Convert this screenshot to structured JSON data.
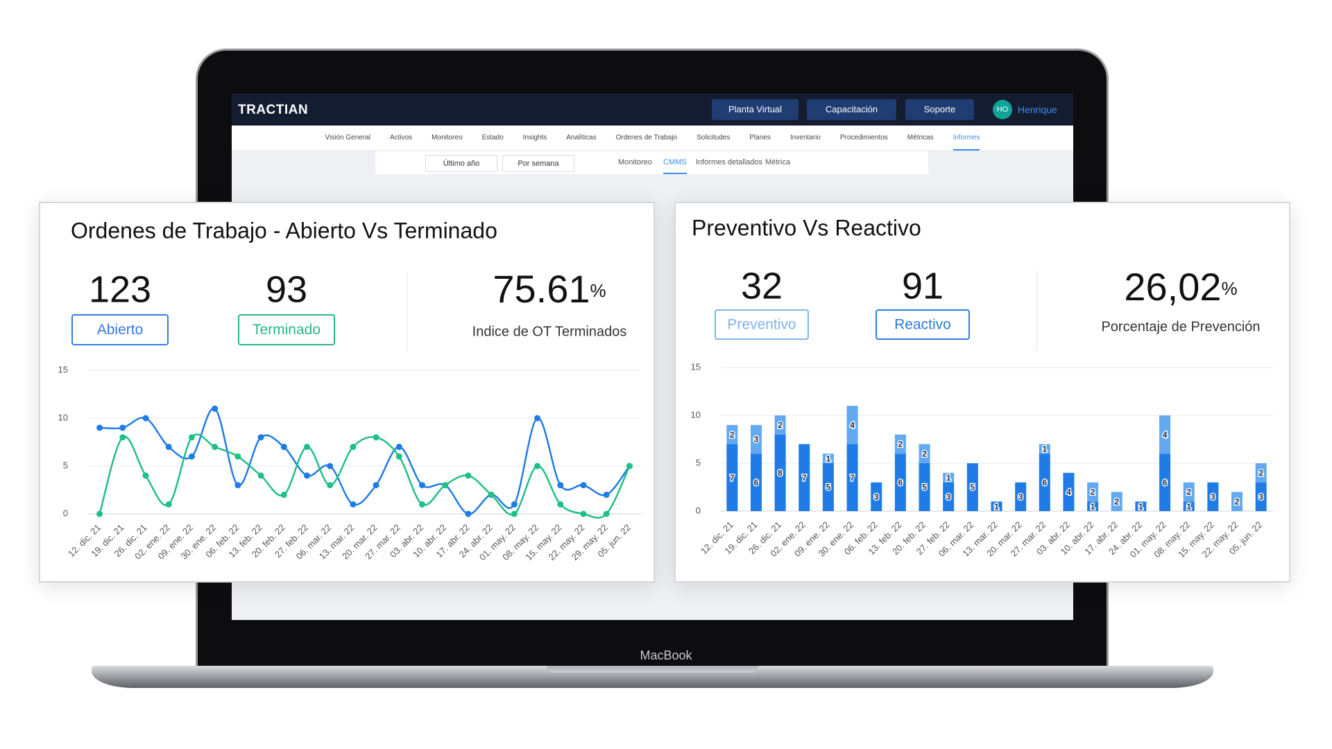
{
  "header": {
    "logo": "TRACTIAN",
    "buttons": [
      "Planta Virtual",
      "Capacitación",
      "Soporte"
    ],
    "avatar": "HO",
    "user": "Henrique"
  },
  "menu": {
    "items": [
      "Visión General",
      "Activos",
      "Monitoreo",
      "Estado",
      "Insights",
      "Analíticas",
      "Ordenes de Trabajo",
      "Solicitudes",
      "Planes",
      "Inventario",
      "Procedimientos",
      "Métricas",
      "Informes"
    ],
    "active": 12
  },
  "filters": [
    "Último año",
    "Por semana"
  ],
  "tabs": {
    "items": [
      "Monitoreo",
      "CMMS",
      "Informes detallados",
      "Métrica"
    ],
    "active": 1
  },
  "device_label": "MacBook",
  "chart_data": [
    {
      "type": "line",
      "title": "Ordenes de Trabajo - Abierto Vs Terminado",
      "kpi": {
        "value": 75.61,
        "unit": "%",
        "label": "Indice de OT Terminados"
      },
      "categories": [
        "12. dic. 21",
        "19. dic. 21",
        "26. dic. 21",
        "02. ene. 22",
        "09. ene. 22",
        "30. ene. 22",
        "06. feb. 22",
        "13. feb. 22",
        "20. feb. 22",
        "27. feb. 22",
        "06. mar. 22",
        "13. mar. 22",
        "20. mar. 22",
        "27. mar. 22",
        "03. abr. 22",
        "10. abr. 22",
        "17. abr. 22",
        "24. abr. 22",
        "01. may. 22",
        "08. may. 22",
        "15. may. 22",
        "22. may. 22",
        "29. may. 22",
        "05. jun. 22"
      ],
      "series": [
        {
          "name": "Abierto",
          "total": 123,
          "color": "#1f7be6",
          "values": [
            9,
            9,
            10,
            7,
            6,
            11,
            3,
            8,
            7,
            4,
            5,
            1,
            3,
            7,
            3,
            3,
            0,
            2,
            1,
            10,
            3,
            3,
            2,
            5
          ]
        },
        {
          "name": "Terminado",
          "total": 93,
          "color": "#20bf86",
          "values": [
            0,
            8,
            4,
            1,
            8,
            7,
            6,
            4,
            2,
            7,
            3,
            7,
            8,
            6,
            1,
            3,
            4,
            2,
            0,
            5,
            1,
            0,
            0,
            5
          ]
        }
      ],
      "ylim": [
        0,
        15
      ],
      "yticks": [
        0,
        5,
        10,
        15
      ],
      "grid": true
    },
    {
      "type": "bar",
      "stacked": true,
      "title": "Preventivo Vs Reactivo",
      "kpi": {
        "value": {
          "value": 26.02,
          "label": "26,02"
        },
        "unit": "%",
        "label": "Porcentaje de Prevención"
      },
      "categories": [
        "12. dic. 21",
        "19. dic. 21",
        "26. dic. 21",
        "02. ene. 22",
        "09. ene. 22",
        "30. ene. 22",
        "06. feb. 22",
        "13. feb. 22",
        "20. feb. 22",
        "27. feb. 22",
        "06. mar. 22",
        "13. mar. 22",
        "20. mar. 22",
        "27. mar. 22",
        "03. abr. 22",
        "10. abr. 22",
        "17. abr. 22",
        "24. abr. 22",
        "01. may. 22",
        "08. may. 22",
        "15. may. 22",
        "22. may. 22",
        "05. jun. 22"
      ],
      "series": [
        {
          "name": "Preventivo",
          "total": 32,
          "color": "#62a9f1",
          "values": [
            2,
            3,
            2,
            0,
            1,
            4,
            0,
            2,
            2,
            1,
            0,
            0,
            0,
            1,
            0,
            2,
            2,
            0,
            4,
            2,
            0,
            2,
            2
          ]
        },
        {
          "name": "Reactivo",
          "total": 91,
          "color": "#1f7be6",
          "values": [
            7,
            6,
            8,
            7,
            5,
            7,
            3,
            6,
            5,
            3,
            5,
            1,
            3,
            6,
            4,
            1,
            0,
            1,
            6,
            1,
            3,
            0,
            3
          ]
        }
      ],
      "ylim": [
        0,
        15
      ],
      "yticks": [
        0,
        5,
        10,
        15
      ],
      "grid": true
    }
  ]
}
